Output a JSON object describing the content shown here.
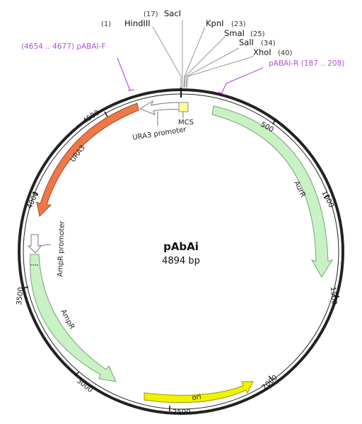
{
  "plasmid": {
    "name": "pAbAi",
    "size_label": "4894 bp"
  },
  "restriction_sites": [
    {
      "pos": "(1)",
      "name": "HindIII"
    },
    {
      "pos": "(17)",
      "name": "SacI"
    },
    {
      "pos": "(23)",
      "name": "KpnI"
    },
    {
      "pos": "(25)",
      "name": "SmaI"
    },
    {
      "pos": "(34)",
      "name": "SalI"
    },
    {
      "pos": "(40)",
      "name": "XhoI"
    }
  ],
  "primers": [
    {
      "label": "(4654 .. 4677)  pABAI-F"
    },
    {
      "label": "pABAI-R  (187 .. 208)"
    }
  ],
  "ticks": [
    "500",
    "1000",
    "1500",
    "2000",
    "2500",
    "3000",
    "3500",
    "4000",
    "4500"
  ],
  "features": {
    "mcs": "MCS",
    "ura3_promoter": "URA3 promoter",
    "ura3": "URA3",
    "aurr": "AurR",
    "ampr_promoter": "AmpR promoter",
    "ampr": "AmpR",
    "ori": "ori"
  },
  "colors": {
    "backbone": "#222222",
    "ura3": "#f07848",
    "aurr": "#c9f2c4",
    "ampr": "#c9f2c4",
    "ori": "#f2f200",
    "mcs": "#ffff99",
    "promoter": "#ffffff",
    "primer": "#b452d6"
  }
}
